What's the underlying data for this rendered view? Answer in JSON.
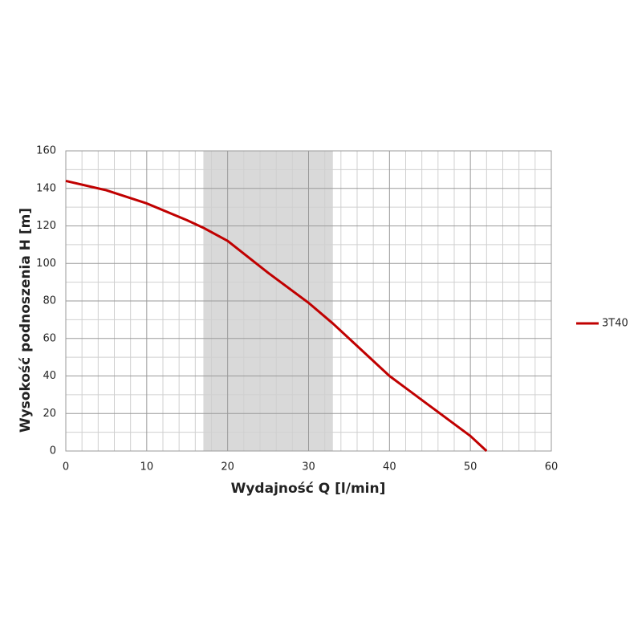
{
  "chart_data": {
    "type": "line",
    "xlabel": "Wydajność Q [l/min]",
    "ylabel": "Wysokość podnoszenia H [m]",
    "x": [
      0,
      5,
      10,
      15,
      17,
      20,
      25,
      30,
      33,
      35,
      40,
      45,
      50,
      52
    ],
    "series": [
      {
        "name": "3T40",
        "color": "#c00000",
        "values": [
          144,
          139,
          132,
          123,
          119,
          112,
          95,
          79,
          68,
          60,
          40,
          24,
          8,
          0
        ]
      }
    ],
    "shaded_range": [
      17,
      33
    ],
    "xlim": [
      0,
      60
    ],
    "xticks": [
      0,
      10,
      20,
      30,
      40,
      50,
      60
    ],
    "ylim": [
      0,
      160
    ],
    "yticks": [
      0,
      20,
      40,
      60,
      80,
      100,
      120,
      140,
      160
    ],
    "grid": true,
    "legend": "right"
  }
}
